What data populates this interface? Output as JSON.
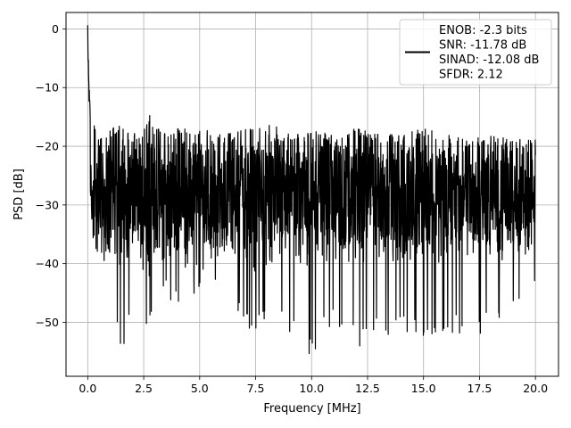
{
  "chart_data": {
    "type": "line",
    "title": "",
    "xlabel": "Frequency [MHz]",
    "ylabel": "PSD [dB]",
    "xlim": [
      -0.97,
      21.03
    ],
    "ylim": [
      -59.2,
      2.8
    ],
    "xticks": [
      0.0,
      2.5,
      5.0,
      7.5,
      10.0,
      12.5,
      15.0,
      17.5,
      20.0
    ],
    "xtick_labels": [
      "0.0",
      "2.5",
      "5.0",
      "7.5",
      "10.0",
      "12.5",
      "15.0",
      "17.5",
      "20.0"
    ],
    "yticks": [
      0,
      -10,
      -20,
      -30,
      -40,
      -50
    ],
    "ytick_labels": [
      "0",
      "−10",
      "−20",
      "−30",
      "−40",
      "−50"
    ],
    "grid": true,
    "legend_position": "top-right",
    "line_color": "#000000",
    "series": [
      {
        "name": "ENOB: -2.3 bits\nSNR: -11.78 dB\nSINAD: -12.08 dB\nSFDR: 2.12",
        "peak_points": {
          "x": [
            0.0,
            0.02,
            0.05,
            0.08,
            0.12,
            0.2,
            0.3,
            0.5,
            1.0,
            1.5,
            2.0,
            2.5,
            2.8,
            3.0,
            4.0,
            5.0,
            6.0,
            7.0,
            7.9,
            9.0,
            10.0,
            11.0,
            12.0,
            13.0,
            14.0,
            15.0,
            16.0,
            17.0,
            18.0,
            19.0,
            20.0
          ],
          "y": [
            0,
            -6,
            -10,
            -13,
            -15,
            -17,
            -16,
            -18,
            -17,
            -16,
            -18,
            -17,
            -14.5,
            -17,
            -17,
            -17,
            -18,
            -17,
            -15.5,
            -18,
            -17,
            -18,
            -17,
            -18,
            -18,
            -17,
            -18,
            -19,
            -18,
            -19,
            -18
          ]
        },
        "trough_points": {
          "x": [
            0.0,
            0.1,
            0.3,
            0.5,
            1.0,
            1.5,
            2.0,
            2.5,
            3.0,
            4.0,
            5.0,
            6.0,
            7.5,
            8.0,
            10.0,
            10.2,
            11.0,
            12.0,
            13.0,
            14.0,
            15.0,
            16.0,
            17.0,
            18.0,
            19.0,
            20.0
          ],
          "y": [
            -7,
            -26,
            -42,
            -38,
            -43,
            -55.5,
            -50,
            -53,
            -46,
            -47,
            -45,
            -46,
            -54,
            -48,
            -56,
            -55,
            -50,
            -55,
            -53,
            -52,
            -54,
            -52,
            -53,
            -52,
            -50,
            -43
          ]
        },
        "band_center_db": -28.5
      }
    ]
  }
}
